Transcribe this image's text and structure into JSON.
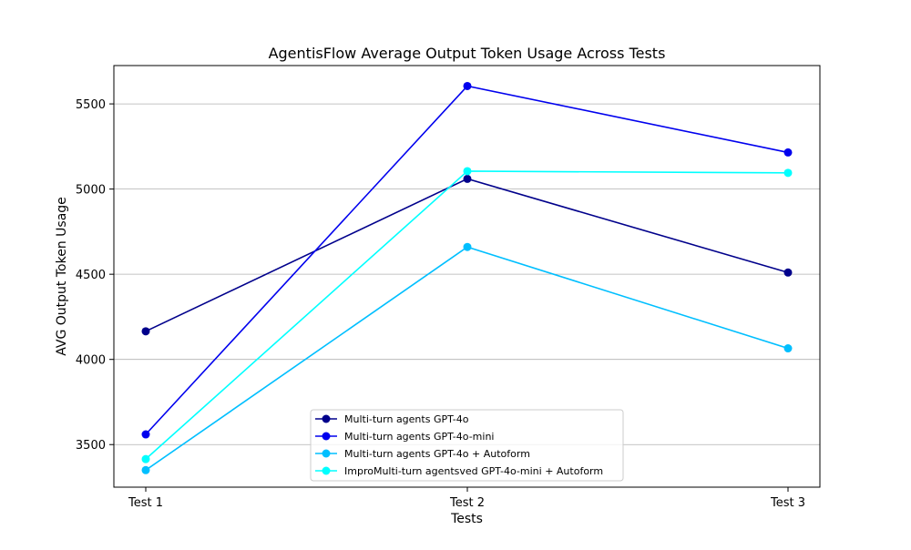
{
  "chart_data": {
    "type": "line",
    "title": "AgentisFlow Average Output Token Usage Across Tests",
    "xlabel": "Tests",
    "ylabel": "AVG Output Token Usage",
    "categories": [
      "Test 1",
      "Test 2",
      "Test 3"
    ],
    "ylim": [
      3250,
      5725
    ],
    "yticks": [
      3500,
      4000,
      4500,
      5000,
      5500
    ],
    "grid": "horizontal",
    "legend_position": "bottom-center",
    "series": [
      {
        "name": "Multi-turn agents GPT-4o",
        "color": "#00008b",
        "marker": "circle",
        "values": [
          4165,
          5060,
          4510
        ]
      },
      {
        "name": "Multi-turn agents GPT-4o-mini",
        "color": "#0000ee",
        "marker": "circle",
        "values": [
          3560,
          5605,
          5215
        ]
      },
      {
        "name": "Multi-turn agents GPT-4o + Autoform",
        "color": "#00bfff",
        "marker": "circle",
        "values": [
          3350,
          4660,
          4065
        ]
      },
      {
        "name": "ImproMulti-turn agentsved GPT-4o-mini + Autoform",
        "color": "#00ffff",
        "marker": "circle",
        "values": [
          3415,
          5105,
          5095
        ]
      }
    ]
  }
}
